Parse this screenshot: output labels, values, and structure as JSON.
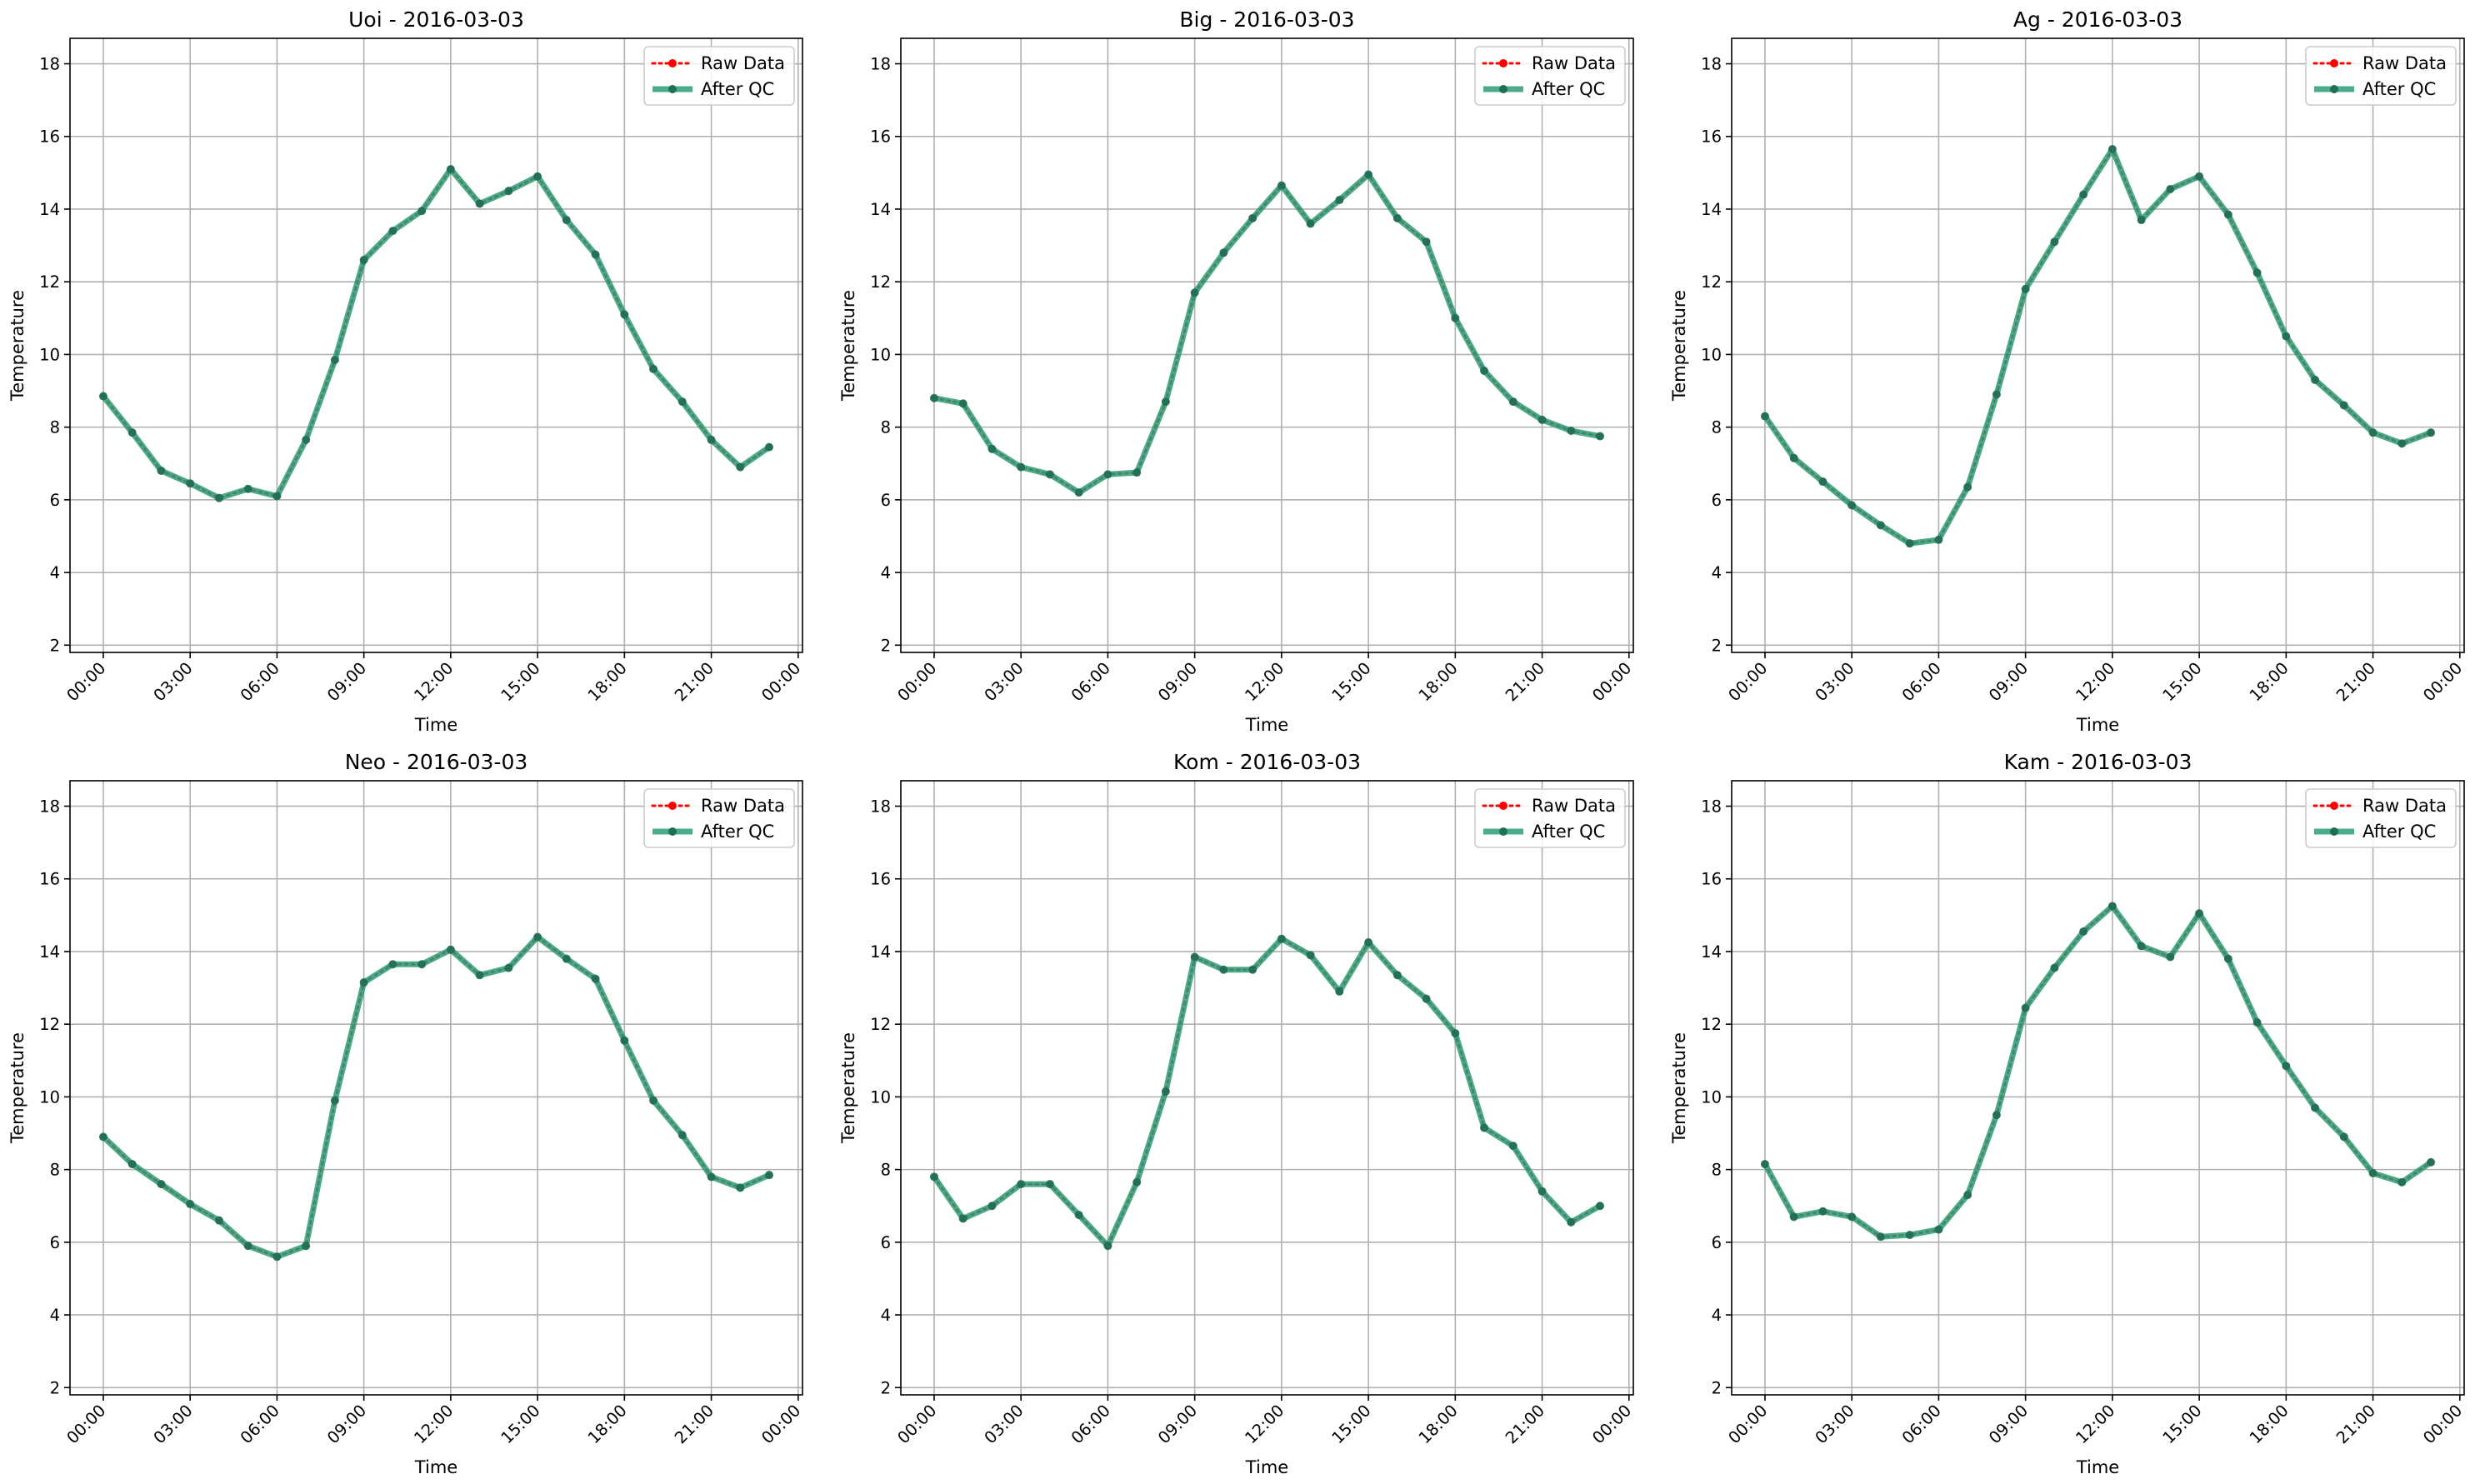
{
  "chart_data": [
    {
      "type": "line",
      "title": "Uoi - 2016-03-03",
      "xlabel": "Time",
      "ylabel": "Temperature",
      "ylim": [
        1.8,
        18.7
      ],
      "yticks": [
        2,
        4,
        6,
        8,
        10,
        12,
        14,
        16,
        18
      ],
      "xticks": [
        "00:00",
        "03:00",
        "06:00",
        "09:00",
        "12:00",
        "15:00",
        "18:00",
        "21:00",
        "00:00"
      ],
      "grid": true,
      "legend": "top-right",
      "x_hours": [
        0,
        1,
        2,
        3,
        4,
        5,
        6,
        7,
        8,
        9,
        10,
        11,
        12,
        13,
        14,
        15,
        16,
        17,
        18,
        19,
        20,
        21,
        22,
        23
      ],
      "series": [
        {
          "name": "Raw Data",
          "color": "#ff0000",
          "style": "dotted",
          "values": [
            8.85,
            7.85,
            6.8,
            6.45,
            6.05,
            6.3,
            6.1,
            7.65,
            9.85,
            12.6,
            13.4,
            13.95,
            15.1,
            14.15,
            14.5,
            14.9,
            13.7,
            12.75,
            11.1,
            9.6,
            8.7,
            7.65,
            6.9,
            7.45
          ]
        },
        {
          "name": "After QC",
          "color": "#2a9d75",
          "style": "solid",
          "values": [
            8.85,
            7.85,
            6.8,
            6.45,
            6.05,
            6.3,
            6.1,
            7.65,
            9.85,
            12.6,
            13.4,
            13.95,
            15.1,
            14.15,
            14.5,
            14.9,
            13.7,
            12.75,
            11.1,
            9.6,
            8.7,
            7.65,
            6.9,
            7.45
          ]
        }
      ]
    },
    {
      "type": "line",
      "title": "Big - 2016-03-03",
      "xlabel": "Time",
      "ylabel": "Temperature",
      "ylim": [
        1.8,
        18.7
      ],
      "yticks": [
        2,
        4,
        6,
        8,
        10,
        12,
        14,
        16,
        18
      ],
      "xticks": [
        "00:00",
        "03:00",
        "06:00",
        "09:00",
        "12:00",
        "15:00",
        "18:00",
        "21:00",
        "00:00"
      ],
      "grid": true,
      "legend": "top-right",
      "x_hours": [
        0,
        1,
        2,
        3,
        4,
        5,
        6,
        7,
        8,
        9,
        10,
        11,
        12,
        13,
        14,
        15,
        16,
        17,
        18,
        19,
        20,
        21,
        22,
        23
      ],
      "series": [
        {
          "name": "Raw Data",
          "color": "#ff0000",
          "style": "dotted",
          "values": [
            8.8,
            8.65,
            7.4,
            6.9,
            6.7,
            6.2,
            6.7,
            6.75,
            8.7,
            11.7,
            12.8,
            13.75,
            14.65,
            13.6,
            14.25,
            14.95,
            13.75,
            13.1,
            11.0,
            9.55,
            8.7,
            8.2,
            7.9,
            7.75
          ]
        },
        {
          "name": "After QC",
          "color": "#2a9d75",
          "style": "solid",
          "values": [
            8.8,
            8.65,
            7.4,
            6.9,
            6.7,
            6.2,
            6.7,
            6.75,
            8.7,
            11.7,
            12.8,
            13.75,
            14.65,
            13.6,
            14.25,
            14.95,
            13.75,
            13.1,
            11.0,
            9.55,
            8.7,
            8.2,
            7.9,
            7.75
          ]
        }
      ]
    },
    {
      "type": "line",
      "title": "Ag - 2016-03-03",
      "xlabel": "Time",
      "ylabel": "Temperature",
      "ylim": [
        1.8,
        18.7
      ],
      "yticks": [
        2,
        4,
        6,
        8,
        10,
        12,
        14,
        16,
        18
      ],
      "xticks": [
        "00:00",
        "03:00",
        "06:00",
        "09:00",
        "12:00",
        "15:00",
        "18:00",
        "21:00",
        "00:00"
      ],
      "grid": true,
      "legend": "top-right",
      "x_hours": [
        0,
        1,
        2,
        3,
        4,
        5,
        6,
        7,
        8,
        9,
        10,
        11,
        12,
        13,
        14,
        15,
        16,
        17,
        18,
        19,
        20,
        21,
        22,
        23
      ],
      "series": [
        {
          "name": "Raw Data",
          "color": "#ff0000",
          "style": "dotted",
          "values": [
            8.3,
            7.15,
            6.5,
            5.85,
            5.3,
            4.8,
            4.9,
            6.35,
            8.9,
            11.8,
            13.1,
            14.4,
            15.65,
            13.7,
            14.55,
            14.9,
            13.85,
            12.25,
            10.5,
            9.3,
            8.6,
            7.85,
            7.55,
            7.85
          ]
        },
        {
          "name": "After QC",
          "color": "#2a9d75",
          "style": "solid",
          "values": [
            8.3,
            7.15,
            6.5,
            5.85,
            5.3,
            4.8,
            4.9,
            6.35,
            8.9,
            11.8,
            13.1,
            14.4,
            15.65,
            13.7,
            14.55,
            14.9,
            13.85,
            12.25,
            10.5,
            9.3,
            8.6,
            7.85,
            7.55,
            7.85
          ]
        }
      ]
    },
    {
      "type": "line",
      "title": "Neo - 2016-03-03",
      "xlabel": "Time",
      "ylabel": "Temperature",
      "ylim": [
        1.8,
        18.7
      ],
      "yticks": [
        2,
        4,
        6,
        8,
        10,
        12,
        14,
        16,
        18
      ],
      "xticks": [
        "00:00",
        "03:00",
        "06:00",
        "09:00",
        "12:00",
        "15:00",
        "18:00",
        "21:00",
        "00:00"
      ],
      "grid": true,
      "legend": "top-right",
      "x_hours": [
        0,
        1,
        2,
        3,
        4,
        5,
        6,
        7,
        8,
        9,
        10,
        11,
        12,
        13,
        14,
        15,
        16,
        17,
        18,
        19,
        20,
        21,
        22,
        23
      ],
      "series": [
        {
          "name": "Raw Data",
          "color": "#ff0000",
          "style": "dotted",
          "values": [
            8.9,
            8.15,
            7.6,
            7.05,
            6.6,
            5.9,
            5.6,
            5.9,
            9.9,
            13.15,
            13.65,
            13.65,
            14.05,
            13.35,
            13.55,
            14.4,
            13.8,
            13.25,
            11.55,
            9.9,
            8.95,
            7.8,
            7.5,
            7.85
          ]
        },
        {
          "name": "After QC",
          "color": "#2a9d75",
          "style": "solid",
          "values": [
            8.9,
            8.15,
            7.6,
            7.05,
            6.6,
            5.9,
            5.6,
            5.9,
            9.9,
            13.15,
            13.65,
            13.65,
            14.05,
            13.35,
            13.55,
            14.4,
            13.8,
            13.25,
            11.55,
            9.9,
            8.95,
            7.8,
            7.5,
            7.85
          ]
        }
      ]
    },
    {
      "type": "line",
      "title": "Kom - 2016-03-03",
      "xlabel": "Time",
      "ylabel": "Temperature",
      "ylim": [
        1.8,
        18.7
      ],
      "yticks": [
        2,
        4,
        6,
        8,
        10,
        12,
        14,
        16,
        18
      ],
      "xticks": [
        "00:00",
        "03:00",
        "06:00",
        "09:00",
        "12:00",
        "15:00",
        "18:00",
        "21:00",
        "00:00"
      ],
      "grid": true,
      "legend": "top-right",
      "x_hours": [
        0,
        1,
        2,
        3,
        4,
        5,
        6,
        7,
        8,
        9,
        10,
        11,
        12,
        13,
        14,
        15,
        16,
        17,
        18,
        19,
        20,
        21,
        22,
        23
      ],
      "series": [
        {
          "name": "Raw Data",
          "color": "#ff0000",
          "style": "dotted",
          "values": [
            7.8,
            6.65,
            7.0,
            7.6,
            7.6,
            6.75,
            5.9,
            7.65,
            10.15,
            13.85,
            13.5,
            13.5,
            14.35,
            13.9,
            12.9,
            14.25,
            13.35,
            12.7,
            11.75,
            9.15,
            8.65,
            7.4,
            6.55,
            7.0
          ]
        },
        {
          "name": "After QC",
          "color": "#2a9d75",
          "style": "solid",
          "values": [
            7.8,
            6.65,
            7.0,
            7.6,
            7.6,
            6.75,
            5.9,
            7.65,
            10.15,
            13.85,
            13.5,
            13.5,
            14.35,
            13.9,
            12.9,
            14.25,
            13.35,
            12.7,
            11.75,
            9.15,
            8.65,
            7.4,
            6.55,
            7.0
          ]
        }
      ]
    },
    {
      "type": "line",
      "title": "Kam - 2016-03-03",
      "xlabel": "Time",
      "ylabel": "Temperature",
      "ylim": [
        1.8,
        18.7
      ],
      "yticks": [
        2,
        4,
        6,
        8,
        10,
        12,
        14,
        16,
        18
      ],
      "xticks": [
        "00:00",
        "03:00",
        "06:00",
        "09:00",
        "12:00",
        "15:00",
        "18:00",
        "21:00",
        "00:00"
      ],
      "grid": true,
      "legend": "top-right",
      "x_hours": [
        0,
        1,
        2,
        3,
        4,
        5,
        6,
        7,
        8,
        9,
        10,
        11,
        12,
        13,
        14,
        15,
        16,
        17,
        18,
        19,
        20,
        21,
        22,
        23
      ],
      "series": [
        {
          "name": "Raw Data",
          "color": "#ff0000",
          "style": "dotted",
          "values": [
            8.15,
            6.7,
            6.85,
            6.7,
            6.15,
            6.2,
            6.35,
            7.3,
            9.5,
            12.45,
            13.55,
            14.55,
            15.25,
            14.15,
            13.85,
            15.05,
            13.8,
            12.05,
            10.85,
            9.7,
            8.9,
            7.9,
            7.65,
            8.2
          ]
        },
        {
          "name": "After QC",
          "color": "#2a9d75",
          "style": "solid",
          "values": [
            8.15,
            6.7,
            6.85,
            6.7,
            6.15,
            6.2,
            6.35,
            7.3,
            9.5,
            12.45,
            13.55,
            14.55,
            15.25,
            14.15,
            13.85,
            15.05,
            13.8,
            12.05,
            10.85,
            9.7,
            8.9,
            7.9,
            7.65,
            8.2
          ]
        }
      ]
    }
  ]
}
